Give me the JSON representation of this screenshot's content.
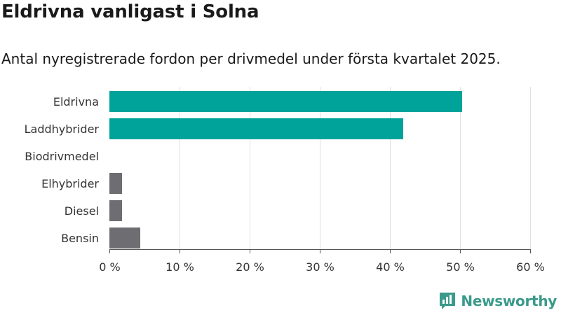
{
  "title": "Eldrivna vanligast i Solna",
  "subtitle": "Antal nyregistrerade fordon per drivmedel under första kvartalet 2025.",
  "brand": {
    "name": "Newsworthy",
    "logo_icon": "bar-chart-speech-bubble-icon",
    "color": "#3a9a8a"
  },
  "chart_data": {
    "type": "bar",
    "orientation": "horizontal",
    "categories": [
      "Eldrivna",
      "Laddhybrider",
      "Biodrivmedel",
      "Elhybrider",
      "Diesel",
      "Bensin"
    ],
    "values": [
      50.3,
      41.9,
      0,
      1.8,
      1.8,
      4.4
    ],
    "colors": [
      "#00a39a",
      "#00a39a",
      "#00a39a",
      "#6e6d72",
      "#6e6d72",
      "#6e6d72"
    ],
    "xlim": [
      0,
      60
    ],
    "xticks": [
      0,
      10,
      20,
      30,
      40,
      50,
      60
    ],
    "tick_labels": [
      "0 %",
      "10 %",
      "20 %",
      "30 %",
      "40 %",
      "50 %",
      "60 %"
    ],
    "grid": true,
    "legend": "none"
  }
}
